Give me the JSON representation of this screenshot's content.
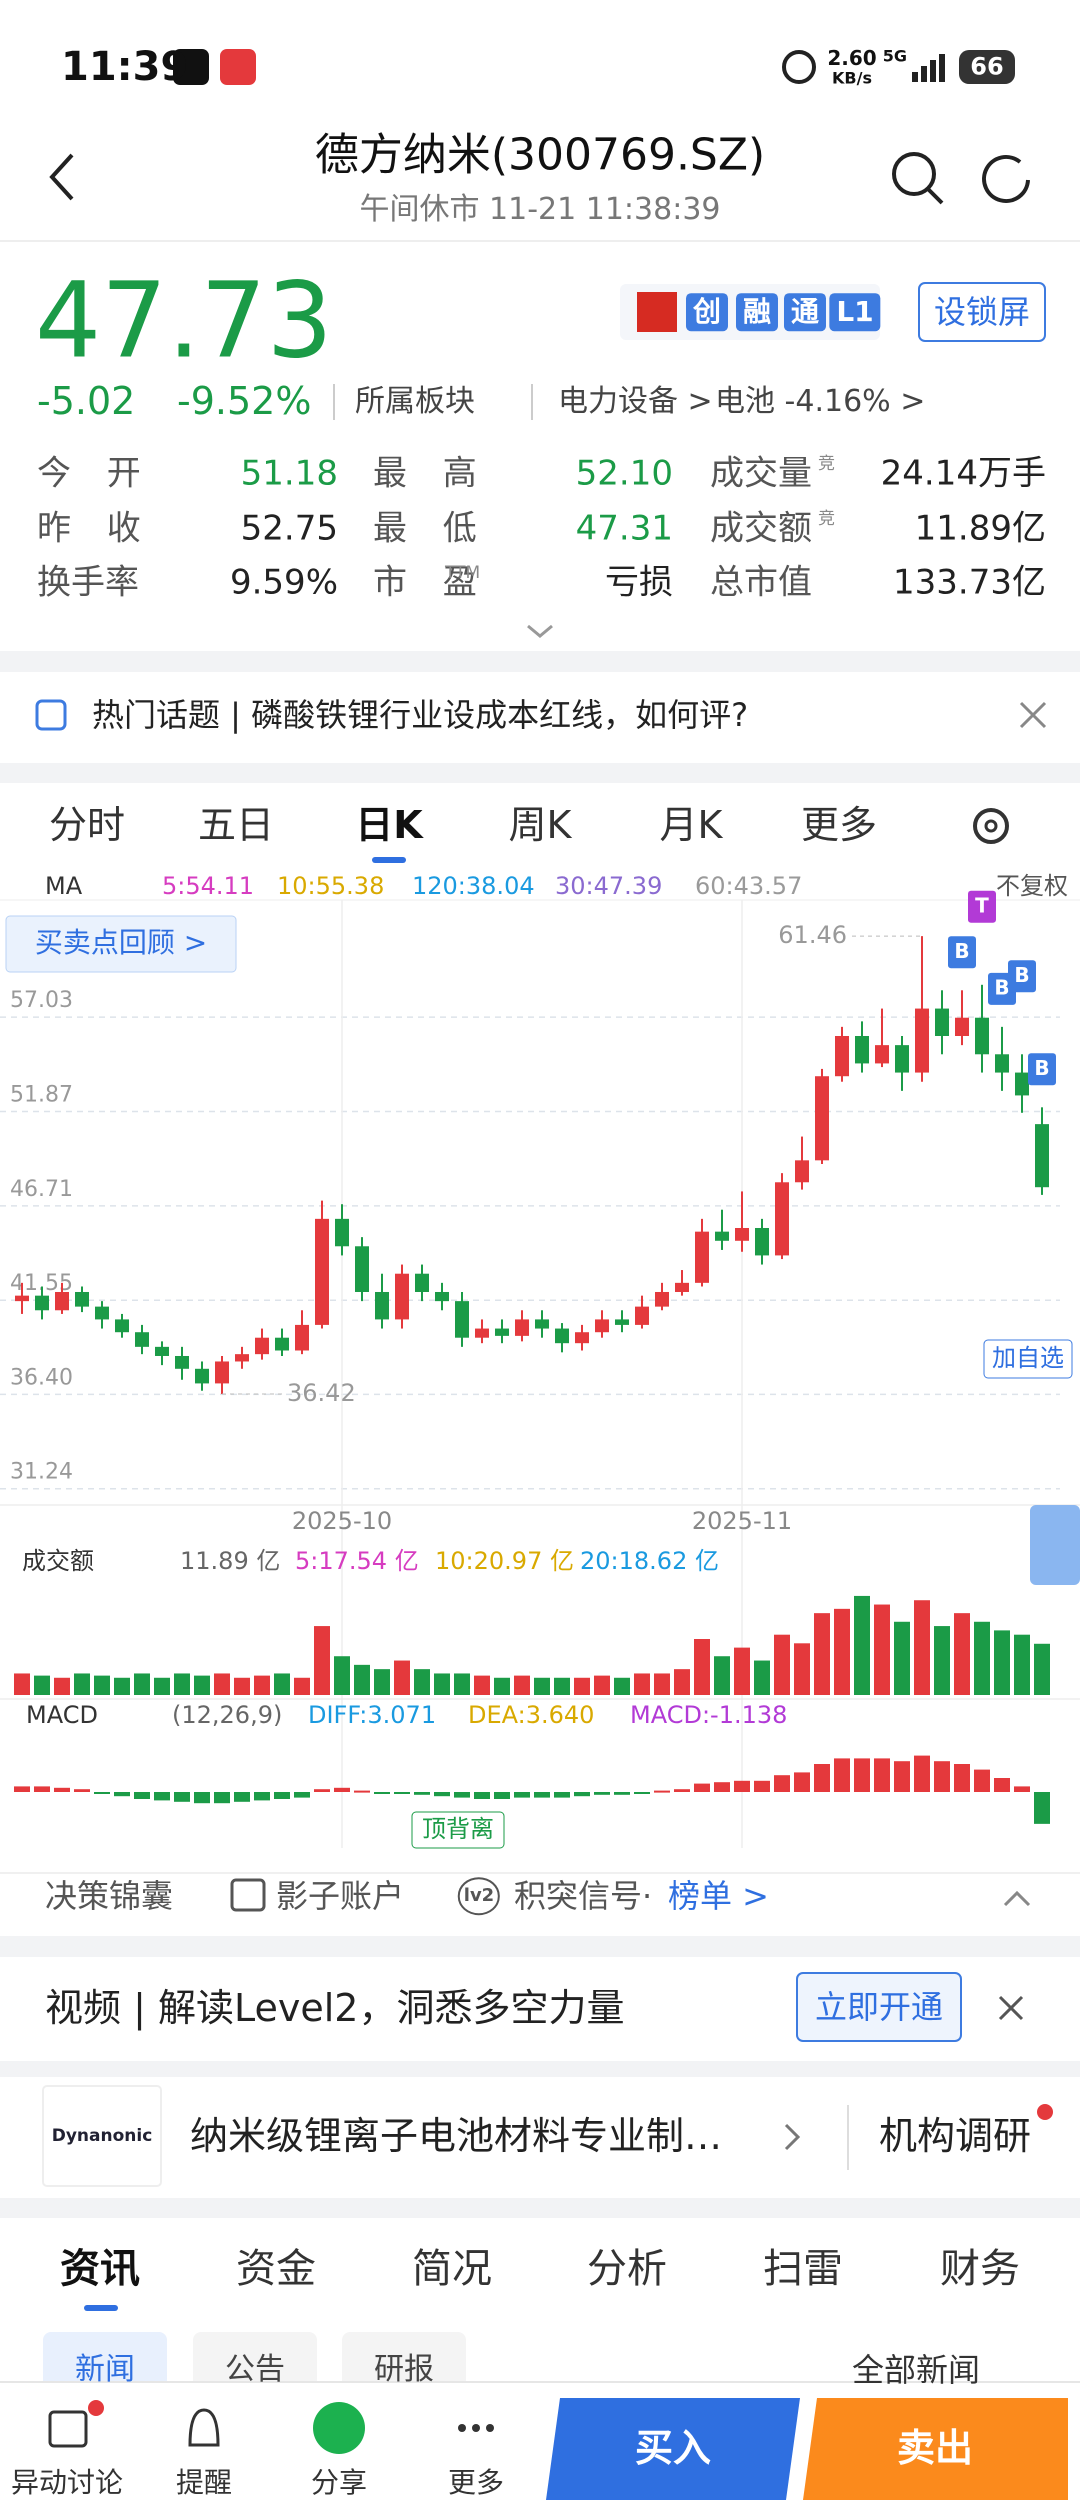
{
  "status": {
    "time": "11:39",
    "speed": "2.60",
    "speed_unit": "KB/s",
    "network": "5G",
    "battery": "66"
  },
  "header": {
    "title": "德方纳米(300769.SZ)",
    "subtitle": "午间休市 11-21 11:38:39"
  },
  "quote": {
    "price": "47.73",
    "change": "-5.02",
    "change_pct": "-9.52%",
    "sector_label": "所属板块",
    "sector": "电力设备 >",
    "sub_sector": "电池 -4.16% >",
    "badges": [
      "创",
      "融",
      "通",
      "L1"
    ],
    "lock_button": "设锁屏",
    "stats": [
      [
        {
          "label": "今开",
          "value": "51.18",
          "color": "#1b9b47"
        },
        {
          "label": "最高",
          "value": "52.10",
          "color": "#1b9b47"
        },
        {
          "label": "成交量",
          "sup": "竞",
          "value": "24.14万手",
          "color": "#222222"
        }
      ],
      [
        {
          "label": "昨收",
          "value": "52.75",
          "color": "#222222"
        },
        {
          "label": "最低",
          "value": "47.31",
          "color": "#1b9b47"
        },
        {
          "label": "成交额",
          "sup": "竞",
          "value": "11.89亿",
          "color": "#222222"
        }
      ],
      [
        {
          "label": "换手率",
          "value": "9.59%",
          "color": "#222222"
        },
        {
          "label": "市盈",
          "sup": "TTM",
          "value": "亏损",
          "color": "#222222"
        },
        {
          "label": "总市值",
          "value": "133.73亿",
          "color": "#222222"
        }
      ]
    ]
  },
  "topic": {
    "text": "热门话题 | 磷酸铁锂行业设成本红线，如何评?"
  },
  "tabs": {
    "items": [
      "分时",
      "五日",
      "日K",
      "周K",
      "月K",
      "更多"
    ],
    "active": 2
  },
  "ma_legend": {
    "label": "MA",
    "adjust": "不复权",
    "items": [
      {
        "text": "5:54.11",
        "color": "#d63cc0"
      },
      {
        "text": "10:55.38",
        "color": "#d9a900"
      },
      {
        "text": "120:38.04",
        "color": "#1a9ae0"
      },
      {
        "text": "30:47.39",
        "color": "#8a6ad0"
      },
      {
        "text": "60:43.57",
        "color": "#9a9a9a"
      }
    ]
  },
  "chart_data": {
    "type": "candlestick",
    "up_color": "#e4393c",
    "down_color": "#1b9b47",
    "ylim": [
      30.46,
      63
    ],
    "yticks": [
      57.03,
      51.87,
      46.71,
      41.55,
      {
        "value": 36.4,
        "label": "36.40"
      },
      31.24
    ],
    "xticks": [
      {
        "value": 16,
        "label": "2025-10"
      },
      {
        "value": 36,
        "label": "2025-11"
      }
    ],
    "review_button": "买卖点回顾 >",
    "watch_button": "加自选",
    "high_label_candle": 45,
    "low_label_candle": 10,
    "signals": [
      {
        "candle": 47,
        "label": "B"
      },
      {
        "candle": 48,
        "label": "T"
      },
      {
        "candle": 49,
        "label": "B"
      },
      {
        "candle": 50,
        "label": "B"
      },
      {
        "candle": 51,
        "label": "B"
      }
    ],
    "candles": [
      {
        "open": 41.5,
        "close": 41.8,
        "high": 42.5,
        "low": 40.8
      },
      {
        "open": 41.8,
        "close": 41.0,
        "high": 42.3,
        "low": 40.5
      },
      {
        "open": 41.0,
        "close": 42.0,
        "high": 42.5,
        "low": 40.8
      },
      {
        "open": 42.0,
        "close": 41.2,
        "high": 42.3,
        "low": 40.9
      },
      {
        "open": 41.2,
        "close": 40.5,
        "high": 41.5,
        "low": 40.0
      },
      {
        "open": 40.5,
        "close": 39.8,
        "high": 40.8,
        "low": 39.5
      },
      {
        "open": 39.8,
        "close": 39.0,
        "high": 40.2,
        "low": 38.6
      },
      {
        "open": 39.0,
        "close": 38.5,
        "high": 39.3,
        "low": 38.0
      },
      {
        "open": 38.5,
        "close": 37.8,
        "high": 39.0,
        "low": 37.2
      },
      {
        "open": 37.8,
        "close": 37.0,
        "high": 38.2,
        "low": 36.6
      },
      {
        "open": 37.0,
        "close": 38.2,
        "high": 38.5,
        "low": 36.42
      },
      {
        "open": 38.2,
        "close": 38.6,
        "high": 39.0,
        "low": 37.8
      },
      {
        "open": 38.6,
        "close": 39.5,
        "high": 40.0,
        "low": 38.3
      },
      {
        "open": 39.5,
        "close": 38.8,
        "high": 40.0,
        "low": 38.5
      },
      {
        "open": 38.8,
        "close": 40.2,
        "high": 41.0,
        "low": 38.6
      },
      {
        "open": 40.2,
        "close": 46.0,
        "high": 47.0,
        "low": 40.0
      },
      {
        "open": 46.0,
        "close": 44.5,
        "high": 46.8,
        "low": 44.0
      },
      {
        "open": 44.5,
        "close": 42.0,
        "high": 45.0,
        "low": 41.5
      },
      {
        "open": 42.0,
        "close": 40.5,
        "high": 43.0,
        "low": 40.0
      },
      {
        "open": 40.5,
        "close": 43.0,
        "high": 43.5,
        "low": 40.0
      },
      {
        "open": 43.0,
        "close": 42.0,
        "high": 43.5,
        "low": 41.5
      },
      {
        "open": 42.0,
        "close": 41.5,
        "high": 42.5,
        "low": 41.0
      },
      {
        "open": 41.5,
        "close": 39.5,
        "high": 42.0,
        "low": 39.0
      },
      {
        "open": 39.5,
        "close": 40.0,
        "high": 40.5,
        "low": 39.2
      },
      {
        "open": 40.0,
        "close": 39.6,
        "high": 40.5,
        "low": 39.2
      },
      {
        "open": 39.6,
        "close": 40.5,
        "high": 41.0,
        "low": 39.3
      },
      {
        "open": 40.5,
        "close": 40.0,
        "high": 41.0,
        "low": 39.5
      },
      {
        "open": 40.0,
        "close": 39.2,
        "high": 40.3,
        "low": 38.7
      },
      {
        "open": 39.2,
        "close": 39.8,
        "high": 40.2,
        "low": 38.8
      },
      {
        "open": 39.8,
        "close": 40.5,
        "high": 41.0,
        "low": 39.5
      },
      {
        "open": 40.5,
        "close": 40.2,
        "high": 41.0,
        "low": 39.8
      },
      {
        "open": 40.2,
        "close": 41.2,
        "high": 41.8,
        "low": 40.0
      },
      {
        "open": 41.2,
        "close": 42.0,
        "high": 42.5,
        "low": 41.0
      },
      {
        "open": 42.0,
        "close": 42.5,
        "high": 43.2,
        "low": 41.8
      },
      {
        "open": 42.5,
        "close": 45.3,
        "high": 46.0,
        "low": 42.3
      },
      {
        "open": 45.3,
        "close": 44.8,
        "high": 46.5,
        "low": 44.3
      },
      {
        "open": 44.8,
        "close": 45.5,
        "high": 47.5,
        "low": 44.2
      },
      {
        "open": 45.5,
        "close": 44.0,
        "high": 46.0,
        "low": 43.5
      },
      {
        "open": 44.0,
        "close": 48.0,
        "high": 48.5,
        "low": 43.8
      },
      {
        "open": 48.0,
        "close": 49.2,
        "high": 50.5,
        "low": 47.6
      },
      {
        "open": 49.2,
        "close": 53.8,
        "high": 54.2,
        "low": 49.0
      },
      {
        "open": 53.8,
        "close": 56.0,
        "high": 56.5,
        "low": 53.5
      },
      {
        "open": 56.0,
        "close": 54.5,
        "high": 56.8,
        "low": 54.0
      },
      {
        "open": 54.5,
        "close": 55.5,
        "high": 57.5,
        "low": 54.3
      },
      {
        "open": 55.5,
        "close": 54.0,
        "high": 56.0,
        "low": 53.0
      },
      {
        "open": 54.0,
        "close": 57.5,
        "high": 61.46,
        "low": 53.5
      },
      {
        "open": 57.5,
        "close": 56.0,
        "high": 58.5,
        "low": 55.0
      },
      {
        "open": 56.0,
        "close": 57.0,
        "high": 58.5,
        "low": 55.5
      },
      {
        "open": 57.0,
        "close": 55.0,
        "high": 58.8,
        "low": 54.0
      },
      {
        "open": 55.0,
        "close": 54.0,
        "high": 56.5,
        "low": 53.0
      },
      {
        "open": 54.0,
        "close": 52.75,
        "high": 55.0,
        "low": 51.8
      },
      {
        "open": 51.18,
        "close": 47.73,
        "high": 52.1,
        "low": 47.31
      }
    ]
  },
  "volume": {
    "label": "成交额",
    "total": "11.89 亿",
    "ma": [
      {
        "text": "5:17.54 亿",
        "color": "#d63cc0"
      },
      {
        "text": "10:20.97 亿",
        "color": "#d9a900"
      },
      {
        "text": "20:18.62 亿",
        "color": "#1a9ae0"
      }
    ],
    "ylim": [
      0,
      26
    ],
    "values": [
      5,
      4.5,
      4,
      5,
      4.5,
      4,
      5,
      4,
      5,
      4.5,
      5,
      4,
      4.5,
      5,
      4,
      16,
      9,
      7,
      6,
      8,
      6,
      5,
      5,
      4.5,
      4,
      4.5,
      4,
      4,
      4,
      4.5,
      4,
      5,
      5,
      6,
      13,
      9,
      11,
      8,
      14,
      12,
      19,
      20,
      23,
      21,
      17,
      22,
      16,
      19,
      17,
      15,
      14,
      11.89
    ]
  },
  "macd": {
    "label": "MACD",
    "params": "(12,26,9)",
    "diff": "DIFF:3.071",
    "dea": "DEA:3.640",
    "macd": "MACD:-1.138",
    "annotation": "顶背离",
    "ylim": [
      -2,
      2
    ],
    "values": [
      0.2,
      0.2,
      0.15,
      0.1,
      -0.05,
      -0.15,
      -0.25,
      -0.3,
      -0.35,
      -0.4,
      -0.4,
      -0.35,
      -0.3,
      -0.25,
      -0.2,
      0.1,
      0.15,
      0.05,
      -0.05,
      -0.05,
      -0.1,
      -0.15,
      -0.2,
      -0.25,
      -0.25,
      -0.2,
      -0.2,
      -0.2,
      -0.15,
      -0.1,
      -0.1,
      -0.05,
      0.05,
      0.1,
      0.3,
      0.35,
      0.4,
      0.4,
      0.6,
      0.7,
      1.0,
      1.2,
      1.2,
      1.2,
      1.1,
      1.3,
      1.1,
      1.0,
      0.8,
      0.5,
      0.2,
      -1.138
    ]
  },
  "tools": {
    "items": [
      "决策锦囊",
      "影子账户",
      "积突信号·"
    ],
    "badge": "lv2",
    "link": "榜单 >"
  },
  "promo": {
    "text": "视频 | 解读Level2，洞悉多空力量",
    "button": "立即开通"
  },
  "company": {
    "logo": "Dynanonic",
    "text": "纳米级锂离子电池材料专业制…",
    "link": "机构调研"
  },
  "news": {
    "tabs": [
      "资讯",
      "资金",
      "简况",
      "分析",
      "扫雷",
      "财务"
    ],
    "active": 0,
    "chips": [
      "新闻",
      "公告",
      "研报"
    ],
    "filter": "全部新闻"
  },
  "bottom": {
    "items": [
      "异动讨论",
      "提醒",
      "分享",
      "更多"
    ],
    "buy": "买入",
    "sell": "卖出"
  }
}
